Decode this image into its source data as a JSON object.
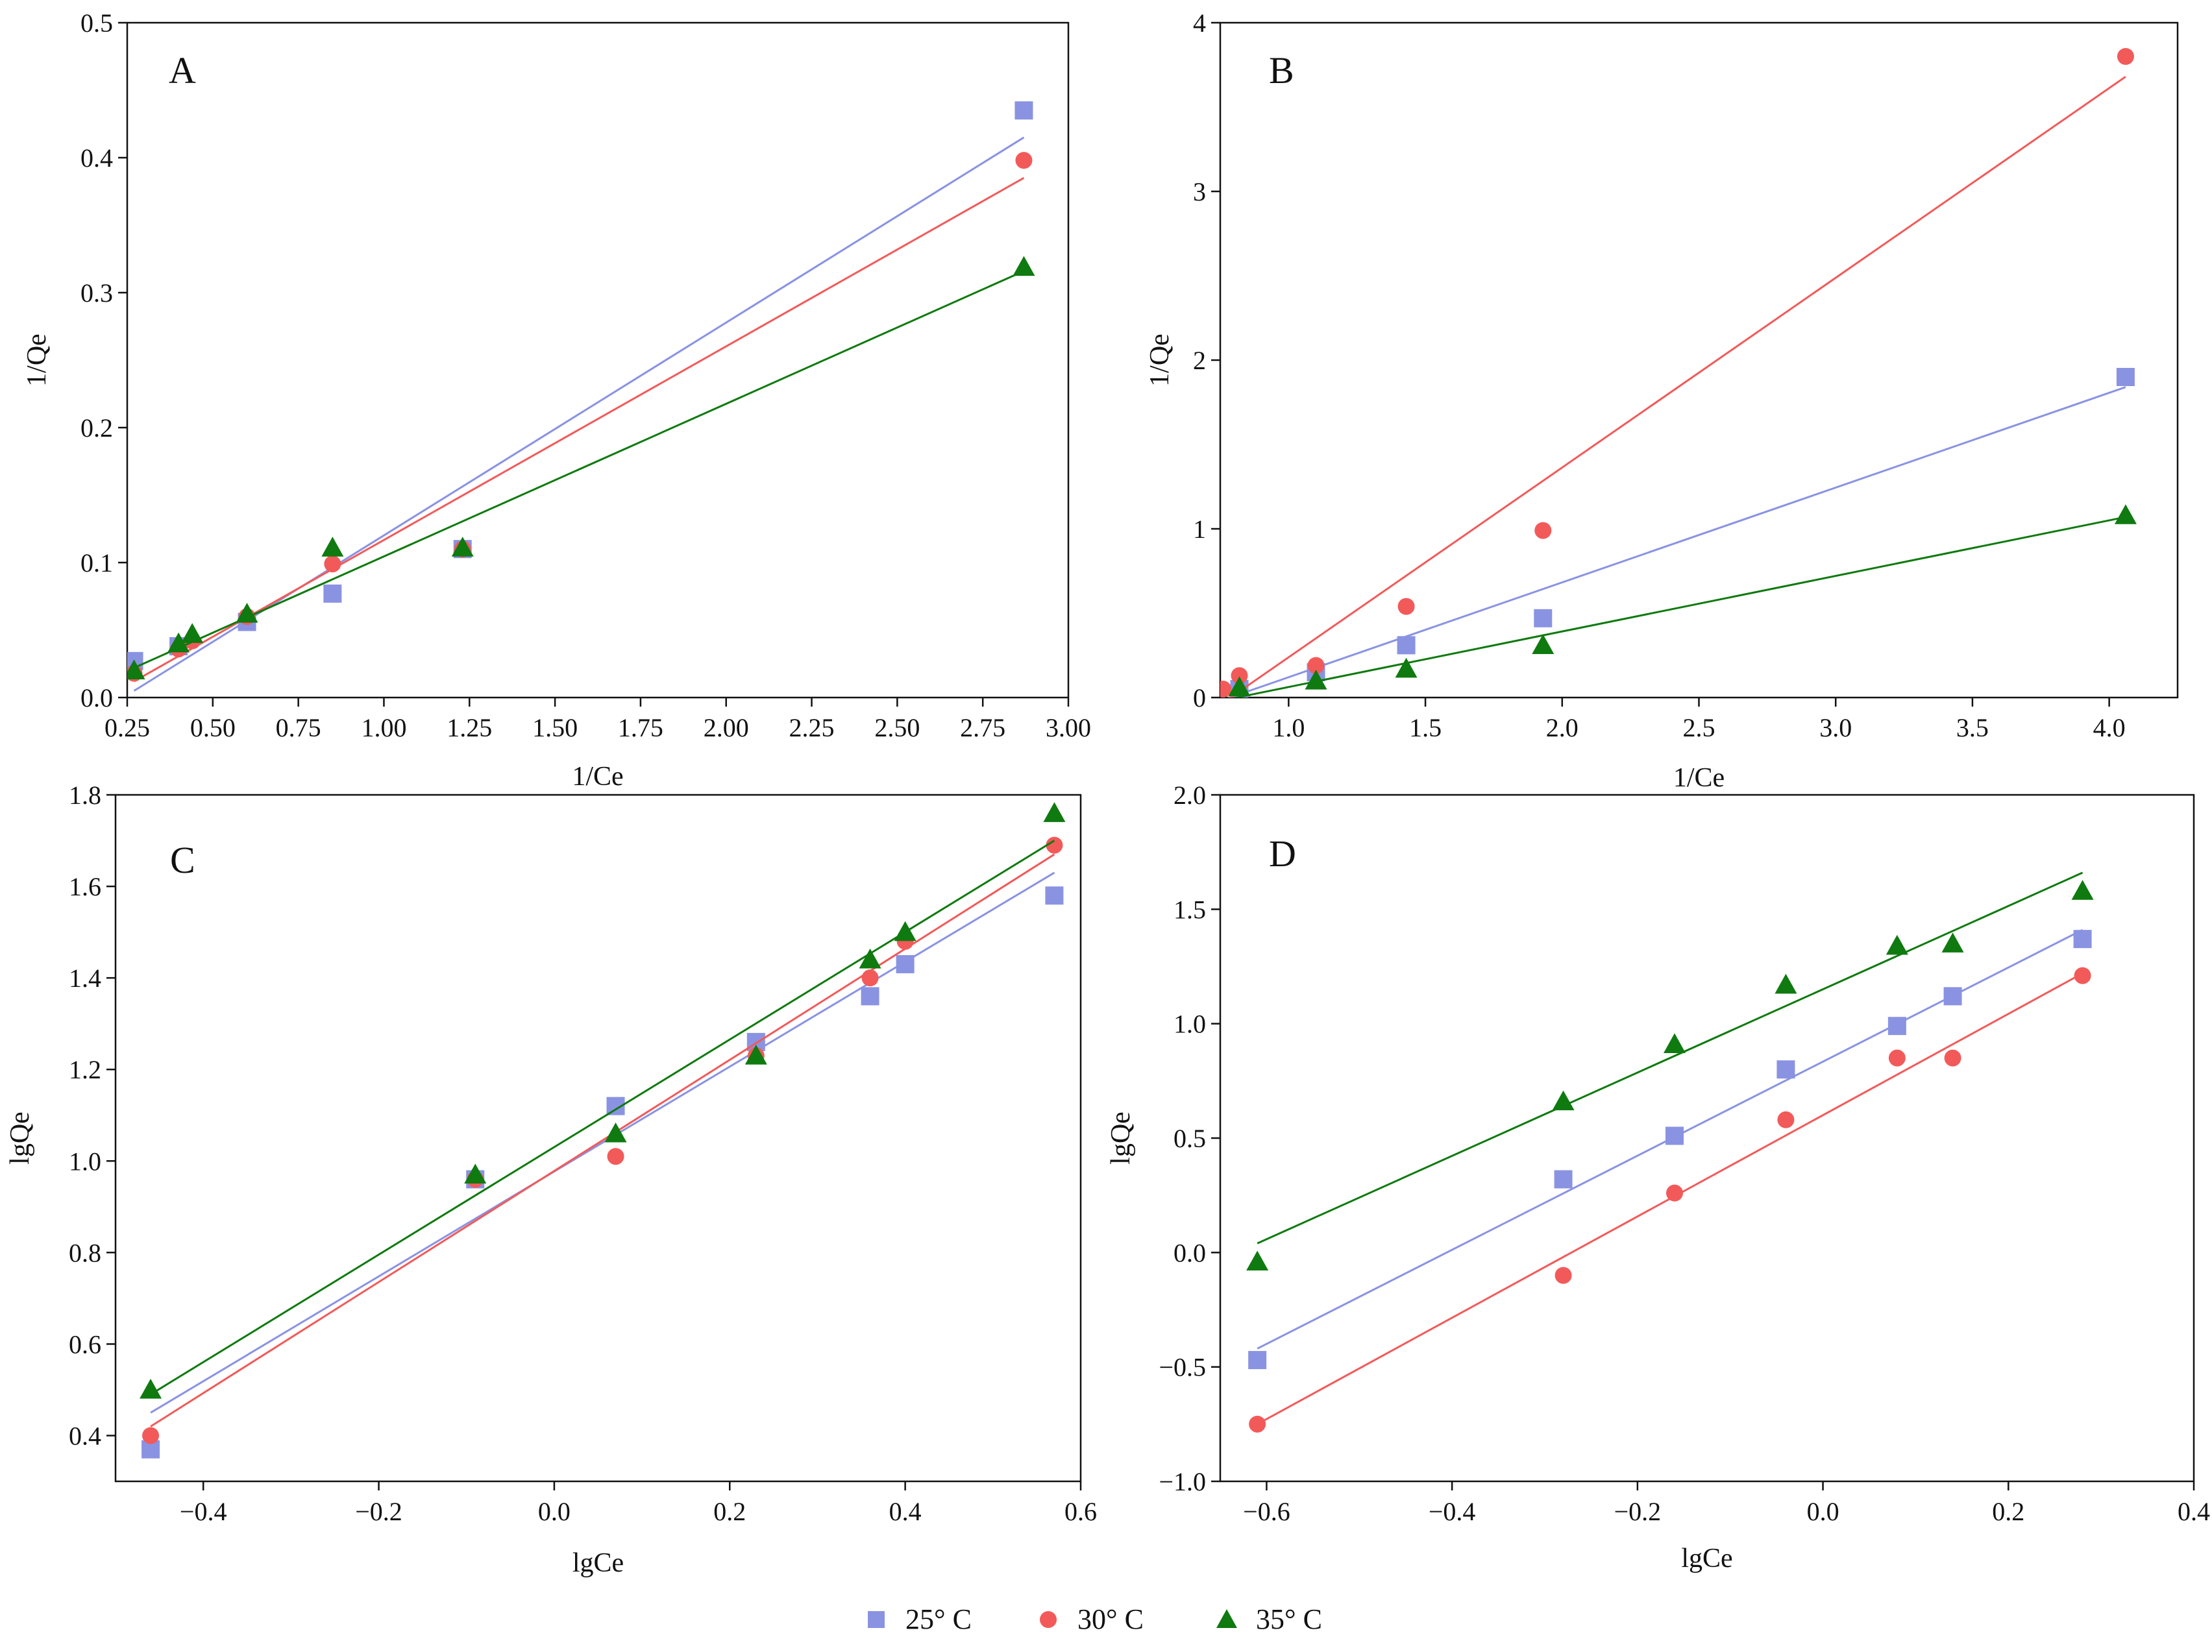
{
  "colors": {
    "s25": "#8a93e2",
    "s30": "#f25a5a",
    "s35": "#0f7a0f",
    "axis": "#111111"
  },
  "legend": [
    {
      "name": "25° C",
      "marker": "square",
      "color_key": "s25"
    },
    {
      "name": "30° C",
      "marker": "circle",
      "color_key": "s30"
    },
    {
      "name": "35° C",
      "marker": "triangle",
      "color_key": "s35"
    }
  ],
  "chart_data": [
    {
      "panel": "A",
      "type": "scatter",
      "xlabel": "1/Ce",
      "ylabel": "1/Qe",
      "xlim": [
        0.25,
        3.0
      ],
      "ylim": [
        0.0,
        0.5
      ],
      "xticks": [
        0.25,
        0.5,
        0.75,
        1.0,
        1.25,
        1.5,
        1.75,
        2.0,
        2.25,
        2.5,
        2.75,
        3.0
      ],
      "xtick_labels": [
        "0.25",
        "0.50",
        "0.75",
        "1.00",
        "1.25",
        "1.50",
        "1.75",
        "2.00",
        "2.25",
        "2.50",
        "2.75",
        "3.00"
      ],
      "yticks": [
        0.0,
        0.1,
        0.2,
        0.3,
        0.4,
        0.5
      ],
      "ytick_labels": [
        "0.0",
        "0.1",
        "0.2",
        "0.3",
        "0.4",
        "0.5"
      ],
      "series": [
        {
          "name": "25° C",
          "x": [
            0.27,
            0.4,
            0.6,
            0.85,
            1.23,
            2.87
          ],
          "y": [
            0.027,
            0.038,
            0.056,
            0.077,
            0.11,
            0.435
          ],
          "fit": [
            [
              0.27,
              0.005
            ],
            [
              2.87,
              0.415
            ]
          ]
        },
        {
          "name": "30° C",
          "x": [
            0.27,
            0.4,
            0.44,
            0.6,
            0.85,
            1.23,
            2.87
          ],
          "y": [
            0.018,
            0.036,
            0.042,
            0.06,
            0.099,
            0.11,
            0.398
          ],
          "fit": [
            [
              0.27,
              0.012
            ],
            [
              2.87,
              0.385
            ]
          ]
        },
        {
          "name": "35° C",
          "x": [
            0.27,
            0.4,
            0.44,
            0.6,
            0.85,
            1.23,
            2.87
          ],
          "y": [
            0.02,
            0.04,
            0.047,
            0.062,
            0.111,
            0.111,
            0.319
          ],
          "fit": [
            [
              0.27,
              0.022
            ],
            [
              2.87,
              0.316
            ]
          ]
        }
      ]
    },
    {
      "panel": "B",
      "type": "scatter",
      "xlabel": "1/Ce",
      "ylabel": "1/Qe",
      "xlim": [
        0.75,
        4.25
      ],
      "ylim": [
        0,
        4
      ],
      "xticks": [
        1.0,
        1.5,
        2.0,
        2.5,
        3.0,
        3.5,
        4.0
      ],
      "xtick_labels": [
        "1.0",
        "1.5",
        "2.0",
        "2.5",
        "3.0",
        "3.5",
        "4.0"
      ],
      "yticks": [
        0,
        1,
        2,
        3,
        4
      ],
      "ytick_labels": [
        "0",
        "1",
        "2",
        "3",
        "4"
      ],
      "series": [
        {
          "name": "25° C",
          "x": [
            0.82,
            1.1,
            1.43,
            1.93,
            4.06
          ],
          "y": [
            0.05,
            0.15,
            0.31,
            0.47,
            1.9
          ],
          "fit": [
            [
              0.75,
              -0.02
            ],
            [
              4.06,
              1.84
            ]
          ]
        },
        {
          "name": "30° C",
          "x": [
            0.76,
            0.82,
            1.1,
            1.43,
            1.93,
            4.06
          ],
          "y": [
            0.05,
            0.13,
            0.19,
            0.54,
            0.99,
            3.8
          ],
          "fit": [
            [
              0.77,
              -0.02
            ],
            [
              4.06,
              3.68
            ]
          ]
        },
        {
          "name": "35° C",
          "x": [
            0.82,
            1.1,
            1.43,
            1.93,
            4.06
          ],
          "y": [
            0.06,
            0.1,
            0.17,
            0.31,
            1.08
          ],
          "fit": [
            [
              0.75,
              -0.02
            ],
            [
              4.06,
              1.07
            ]
          ]
        }
      ]
    },
    {
      "panel": "C",
      "type": "scatter",
      "xlabel": "lgCe",
      "ylabel": "lgQe",
      "xlim": [
        -0.5,
        0.6
      ],
      "ylim": [
        0.3,
        1.8
      ],
      "xticks": [
        -0.4,
        -0.2,
        0.0,
        0.2,
        0.4,
        0.6
      ],
      "xtick_labels": [
        "-0.4",
        "-0.2",
        "0.0",
        "0.2",
        "0.4",
        "0.6"
      ],
      "yticks": [
        0.4,
        0.6,
        0.8,
        1.0,
        1.2,
        1.4,
        1.6,
        1.8
      ],
      "ytick_labels": [
        "0.4",
        "0.6",
        "0.8",
        "1.0",
        "1.2",
        "1.4",
        "1.6",
        "1.8"
      ],
      "series": [
        {
          "name": "25° C",
          "x": [
            -0.46,
            -0.09,
            0.07,
            0.23,
            0.36,
            0.4,
            0.57
          ],
          "y": [
            0.37,
            0.96,
            1.12,
            1.26,
            1.36,
            1.43,
            1.58
          ],
          "fit": [
            [
              -0.46,
              0.45
            ],
            [
              0.57,
              1.63
            ]
          ]
        },
        {
          "name": "30° C",
          "x": [
            -0.46,
            -0.09,
            0.07,
            0.23,
            0.36,
            0.4,
            0.57
          ],
          "y": [
            0.4,
            0.96,
            1.01,
            1.23,
            1.4,
            1.48,
            1.69
          ],
          "fit": [
            [
              -0.46,
              0.42
            ],
            [
              0.57,
              1.67
            ]
          ]
        },
        {
          "name": "35° C",
          "x": [
            -0.46,
            -0.09,
            0.07,
            0.23,
            0.36,
            0.4,
            0.57
          ],
          "y": [
            0.5,
            0.97,
            1.06,
            1.23,
            1.44,
            1.5,
            1.76
          ],
          "fit": [
            [
              -0.46,
              0.49
            ],
            [
              0.57,
              1.7
            ]
          ]
        }
      ]
    },
    {
      "panel": "D",
      "type": "scatter",
      "xlabel": "lgCe",
      "ylabel": "lgQe",
      "xlim": [
        -0.65,
        0.4
      ],
      "ylim": [
        -1.0,
        2.0
      ],
      "xticks": [
        -0.6,
        -0.4,
        -0.2,
        0.0,
        0.2,
        0.4
      ],
      "xtick_labels": [
        "-0.6",
        "-0.4",
        "-0.2",
        "0.0",
        "0.2",
        "0.4"
      ],
      "yticks": [
        -1.0,
        -0.5,
        0.0,
        0.5,
        1.0,
        1.5,
        2.0
      ],
      "ytick_labels": [
        "-1.0",
        "-0.5",
        "0.0",
        "0.5",
        "1.0",
        "1.5",
        "2.0"
      ],
      "series": [
        {
          "name": "25° C",
          "x": [
            -0.61,
            -0.28,
            -0.16,
            -0.04,
            0.08,
            0.14,
            0.28
          ],
          "y": [
            -0.47,
            0.32,
            0.51,
            0.8,
            0.99,
            1.12,
            1.37
          ],
          "fit": [
            [
              -0.61,
              -0.42
            ],
            [
              0.28,
              1.41
            ]
          ]
        },
        {
          "name": "30° C",
          "x": [
            -0.61,
            -0.28,
            -0.16,
            -0.04,
            0.08,
            0.14,
            0.28
          ],
          "y": [
            -0.75,
            -0.1,
            0.26,
            0.58,
            0.85,
            0.85,
            1.21
          ],
          "fit": [
            [
              -0.61,
              -0.75
            ],
            [
              0.28,
              1.22
            ]
          ]
        },
        {
          "name": "35° C",
          "x": [
            -0.61,
            -0.28,
            -0.16,
            -0.04,
            0.08,
            0.14,
            0.28
          ],
          "y": [
            -0.04,
            0.66,
            0.91,
            1.17,
            1.34,
            1.35,
            1.58
          ],
          "fit": [
            [
              -0.61,
              0.04
            ],
            [
              0.28,
              1.66
            ]
          ]
        }
      ]
    }
  ]
}
